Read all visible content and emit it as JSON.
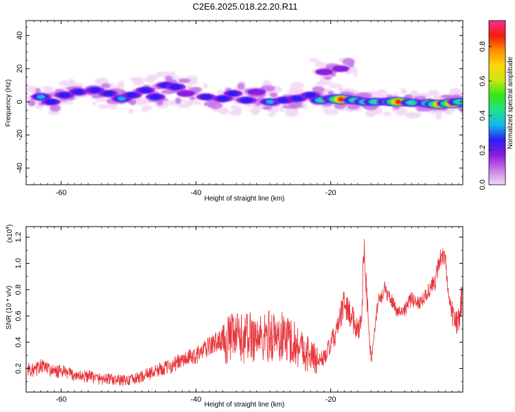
{
  "title": "C2E6.2025.018.22.20.R11",
  "colors": {
    "snr_line": "#e8373c",
    "colorbar": [
      "#f3d7f5",
      "#c77ae8",
      "#8a1be0",
      "#2a1ef5",
      "#12b7ea",
      "#22e08f",
      "#33e516",
      "#c9e516",
      "#ffd60a",
      "#ff8c00",
      "#ef1a12",
      "#ff2e8a"
    ]
  },
  "chart_data": [
    {
      "type": "heatmap",
      "title": "C2E6.2025.018.22.20.R11",
      "xlabel": "Height of straight line (km)",
      "ylabel": "Frequency (Hz)",
      "xlim": [
        -65.2,
        -0.4
      ],
      "ylim": [
        -50,
        49
      ],
      "xticks": [
        "-60",
        "-40",
        "-20"
      ],
      "xtick_values": [
        -60,
        -40,
        -20
      ],
      "yticks": [
        "-40",
        "-20",
        "0",
        "20",
        "40"
      ],
      "ytick_values": [
        -40,
        -20,
        0,
        20,
        40
      ],
      "colorbar": {
        "label": "Normalized spectral amplitude",
        "range": [
          0,
          0.95
        ],
        "ticks": [
          "0.0",
          "0.2",
          "0.4",
          "0.6",
          "0.8"
        ],
        "tick_values": [
          0,
          0.2,
          0.4,
          0.6,
          0.8
        ]
      },
      "features": [
        {
          "x": -63.0,
          "y": 3,
          "amp": 0.35
        },
        {
          "x": -61.5,
          "y": 0,
          "amp": 0.3
        },
        {
          "x": -59.5,
          "y": 4,
          "amp": 0.32
        },
        {
          "x": -57.5,
          "y": 6,
          "amp": 0.28
        },
        {
          "x": -55.0,
          "y": 7,
          "amp": 0.33
        },
        {
          "x": -53.0,
          "y": 5,
          "amp": 0.28
        },
        {
          "x": -51.0,
          "y": 2,
          "amp": 0.36
        },
        {
          "x": -49.5,
          "y": 4,
          "amp": 0.31
        },
        {
          "x": -47.5,
          "y": 7,
          "amp": 0.3
        },
        {
          "x": -46.0,
          "y": 3,
          "amp": 0.32
        },
        {
          "x": -44.5,
          "y": 10,
          "amp": 0.26
        },
        {
          "x": -43.0,
          "y": 9,
          "amp": 0.33
        },
        {
          "x": -41.5,
          "y": 5,
          "amp": 0.24
        },
        {
          "x": -38.5,
          "y": 3,
          "amp": 0.3
        },
        {
          "x": -36.0,
          "y": 2,
          "amp": 0.33
        },
        {
          "x": -34.5,
          "y": 5,
          "amp": 0.28
        },
        {
          "x": -32.5,
          "y": 1,
          "amp": 0.33
        },
        {
          "x": -31.0,
          "y": 6,
          "amp": 0.25
        },
        {
          "x": -29.0,
          "y": 0,
          "amp": 0.37
        },
        {
          "x": -27.0,
          "y": 1,
          "amp": 0.34
        },
        {
          "x": -25.0,
          "y": 2,
          "amp": 0.33
        },
        {
          "x": -23.0,
          "y": 4,
          "amp": 0.3
        },
        {
          "x": -21.5,
          "y": 1,
          "amp": 0.45
        },
        {
          "x": -19.5,
          "y": 2,
          "amp": 0.55
        },
        {
          "x": -18.5,
          "y": 1.5,
          "amp": 0.93
        },
        {
          "x": -16.5,
          "y": 1,
          "amp": 0.5
        },
        {
          "x": -15.0,
          "y": 0,
          "amp": 0.45
        },
        {
          "x": -13.5,
          "y": 0,
          "amp": 0.5
        },
        {
          "x": -11.5,
          "y": 0,
          "amp": 0.48
        },
        {
          "x": -10.0,
          "y": 0,
          "amp": 0.88
        },
        {
          "x": -8.0,
          "y": -0.5,
          "amp": 0.5
        },
        {
          "x": -5.5,
          "y": -1,
          "amp": 0.55
        },
        {
          "x": -4.0,
          "y": -1.5,
          "amp": 0.8
        },
        {
          "x": -2.0,
          "y": -1,
          "amp": 0.88
        },
        {
          "x": -1.0,
          "y": 0,
          "amp": 0.5
        },
        {
          "x": -21.0,
          "y": 18,
          "amp": 0.2
        },
        {
          "x": -18.5,
          "y": 20,
          "amp": 0.18
        }
      ]
    },
    {
      "type": "line",
      "xlabel": "Height of straight line (km)",
      "ylabel": "SNR (10 * v/v)",
      "yscale_label": "(x10",
      "yscale_exp": "4",
      "xlim": [
        -65.2,
        -0.4
      ],
      "ylim": [
        0.02,
        1.28
      ],
      "xticks": [
        "-60",
        "-40",
        "-20"
      ],
      "xtick_values": [
        -60,
        -40,
        -20
      ],
      "yticks": [
        "0.2",
        "0.4",
        "0.6",
        "0.8",
        "1.0",
        "1.2"
      ],
      "ytick_values": [
        0.2,
        0.4,
        0.6,
        0.8,
        1.0,
        1.2
      ],
      "series": [
        {
          "x": [
            -65,
            -64,
            -63,
            -62,
            -61,
            -60,
            -59,
            -58,
            -57,
            -56,
            -55,
            -54,
            -53,
            -52,
            -51,
            -50,
            -49,
            -48,
            -47,
            -46,
            -45,
            -44,
            -43,
            -42,
            -41,
            -40,
            -39,
            -38,
            -37,
            -36,
            -35,
            -34,
            -33,
            -32,
            -31,
            -30,
            -29,
            -28,
            -27,
            -26,
            -25,
            -24,
            -23,
            -22,
            -21,
            -20,
            -19,
            -18,
            -17,
            -16,
            -15.5,
            -15,
            -14.5,
            -14,
            -13,
            -12,
            -11,
            -10,
            -9,
            -8,
            -7,
            -6,
            -5,
            -4.5,
            -4,
            -3.5,
            -3,
            -2.5,
            -2,
            -1.5,
            -1,
            -0.5
          ],
          "values": [
            0.2,
            0.18,
            0.22,
            0.2,
            0.17,
            0.18,
            0.16,
            0.15,
            0.14,
            0.14,
            0.13,
            0.12,
            0.12,
            0.11,
            0.11,
            0.11,
            0.12,
            0.14,
            0.16,
            0.18,
            0.2,
            0.21,
            0.24,
            0.26,
            0.28,
            0.3,
            0.33,
            0.37,
            0.4,
            0.42,
            0.42,
            0.44,
            0.42,
            0.45,
            0.44,
            0.42,
            0.46,
            0.43,
            0.44,
            0.42,
            0.38,
            0.34,
            0.3,
            0.26,
            0.28,
            0.38,
            0.5,
            0.7,
            0.6,
            0.5,
            0.55,
            1.15,
            0.62,
            0.25,
            0.7,
            0.8,
            0.72,
            0.63,
            0.65,
            0.73,
            0.7,
            0.75,
            0.83,
            0.85,
            1.0,
            1.08,
            1.02,
            0.72,
            0.62,
            0.55,
            0.57,
            0.76
          ]
        }
      ]
    }
  ]
}
